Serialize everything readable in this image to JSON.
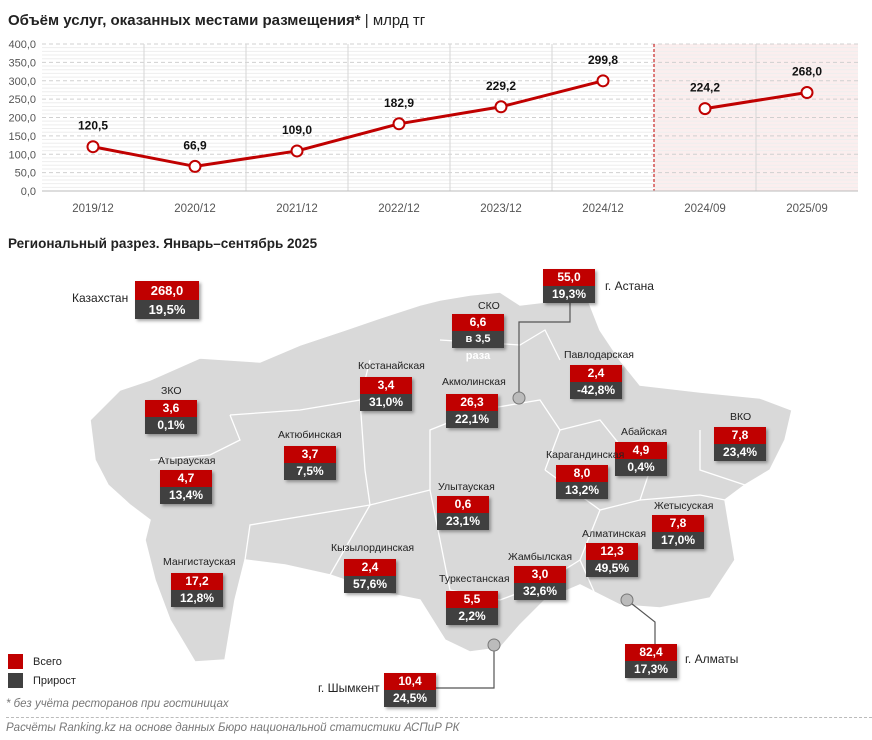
{
  "title": "Объём услуг, оказанных местами размещения*",
  "unit": "| млрд тг",
  "subtitle": "Региональный разрез. Январь–сентябрь 2025",
  "chart_data": {
    "type": "line",
    "title": "Объём услуг, оказанных местами размещения*",
    "ylabel": "млрд тг",
    "categories": [
      "2019/12",
      "2020/12",
      "2021/12",
      "2022/12",
      "2023/12",
      "2024/12",
      "2024/09",
      "2025/09"
    ],
    "series": [
      {
        "segment": "annual",
        "values": [
          120.5,
          66.9,
          109.0,
          182.9,
          229.2,
          299.8,
          null,
          null
        ]
      },
      {
        "segment": "jan-sep",
        "values": [
          null,
          null,
          null,
          null,
          null,
          null,
          224.2,
          268.0
        ]
      }
    ],
    "data_labels": [
      "120,5",
      "66,9",
      "109,0",
      "182,9",
      "229,2",
      "299,8",
      "224,2",
      "268,0"
    ],
    "yticks": [
      "0,0",
      "50,0",
      "100,0",
      "150,0",
      "200,0",
      "250,0",
      "300,0",
      "350,0",
      "400,0"
    ],
    "ylim": [
      0,
      400
    ],
    "grid": true,
    "highlight_region": [
      "2024/09",
      "2025/09"
    ],
    "colors": {
      "line": "#c00000",
      "highlight": "#fbeeee"
    }
  },
  "map": {
    "kazakhstan": {
      "name": "Казахстан",
      "total": "268,0",
      "growth": "19,5%"
    },
    "regions": [
      {
        "name": "СКО",
        "total": "6,6",
        "growth": "в 3,5 раза"
      },
      {
        "name": "г. Астана",
        "total": "55,0",
        "growth": "19,3%"
      },
      {
        "name": "Костанайская",
        "total": "3,4",
        "growth": "31,0%"
      },
      {
        "name": "Павлодарская",
        "total": "2,4",
        "growth": "-42,8%"
      },
      {
        "name": "Акмолинская",
        "total": "26,3",
        "growth": "22,1%"
      },
      {
        "name": "ЗКО",
        "total": "3,6",
        "growth": "0,1%"
      },
      {
        "name": "Абайская",
        "total": "4,9",
        "growth": "0,4%"
      },
      {
        "name": "ВКО",
        "total": "7,8",
        "growth": "23,4%"
      },
      {
        "name": "Актюбинская",
        "total": "3,7",
        "growth": "7,5%"
      },
      {
        "name": "Атырауская",
        "total": "4,7",
        "growth": "13,4%"
      },
      {
        "name": "Карагандинская",
        "total": "8,0",
        "growth": "13,2%"
      },
      {
        "name": "Улытауская",
        "total": "0,6",
        "growth": "23,1%"
      },
      {
        "name": "Жетысуская",
        "total": "7,8",
        "growth": "17,0%"
      },
      {
        "name": "Алматинская",
        "total": "12,3",
        "growth": "49,5%"
      },
      {
        "name": "Мангистауская",
        "total": "17,2",
        "growth": "12,8%"
      },
      {
        "name": "Кызылординская",
        "total": "2,4",
        "growth": "57,6%"
      },
      {
        "name": "Жамбылская",
        "total": "3,0",
        "growth": "32,6%"
      },
      {
        "name": "Туркестанская",
        "total": "5,5",
        "growth": "2,2%"
      },
      {
        "name": "г. Алматы",
        "total": "82,4",
        "growth": "17,3%"
      },
      {
        "name": "г. Шымкент",
        "total": "10,4",
        "growth": "24,5%"
      }
    ],
    "colors": {
      "total": "#c00000",
      "growth": "#404040",
      "land": "#d9d9d9"
    }
  },
  "legend": {
    "total": "Всего",
    "growth": "Прирост"
  },
  "footnote": "* без учёта ресторанов при гостиницах",
  "source": "Расчёты Ranking.kz на основе данных Бюро национальной статистики АСПиР РК"
}
